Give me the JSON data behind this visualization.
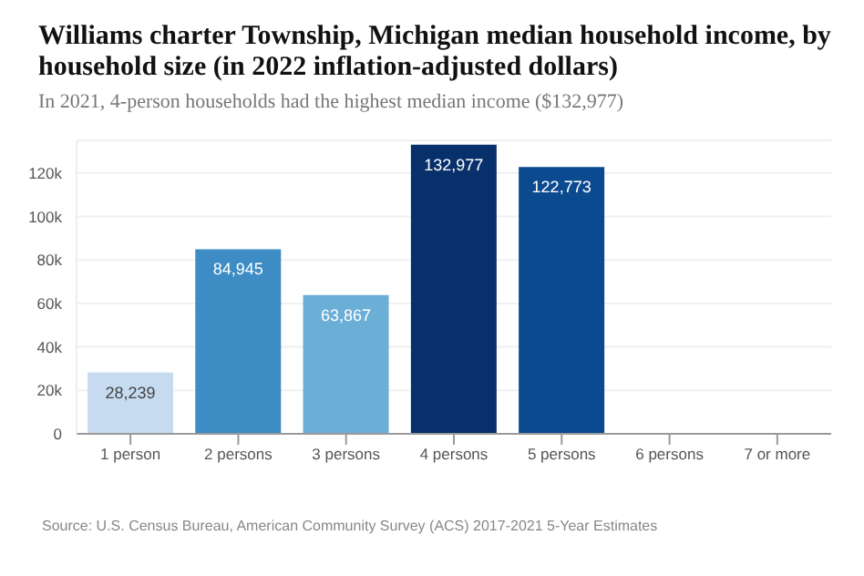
{
  "chart_data": {
    "type": "bar",
    "title": "Williams charter Township, Michigan median household income, by household size (in 2022 inflation-adjusted dollars)",
    "subtitle": "In 2021, 4-person households had the highest median income ($132,977)",
    "categories": [
      "1 person",
      "2 persons",
      "3 persons",
      "4 persons",
      "5 persons",
      "6 persons",
      "7 or more"
    ],
    "values": [
      28239,
      84945,
      63867,
      132977,
      122773,
      null,
      null
    ],
    "colors": [
      "#c6dbef",
      "#3d8cc4",
      "#6baed6",
      "#08306b",
      "#0b4a8f",
      "#0b4a8f",
      "#0b4a8f"
    ],
    "value_labels": [
      "28,239",
      "84,945",
      "63,867",
      "132,977",
      "122,773",
      null,
      null
    ],
    "ylim": [
      0,
      135000
    ],
    "yticks": [
      {
        "value": 0,
        "label": "0"
      },
      {
        "value": 20000,
        "label": "20k"
      },
      {
        "value": 40000,
        "label": "40k"
      },
      {
        "value": 60000,
        "label": "60k"
      },
      {
        "value": 80000,
        "label": "80k"
      },
      {
        "value": 100000,
        "label": "100k"
      },
      {
        "value": 120000,
        "label": "120k"
      }
    ],
    "grid": "y",
    "annotations": [
      "Source: U.S. Census Bureau, American Community Survey (ACS) 2017-2021 5-Year Estimates"
    ]
  }
}
